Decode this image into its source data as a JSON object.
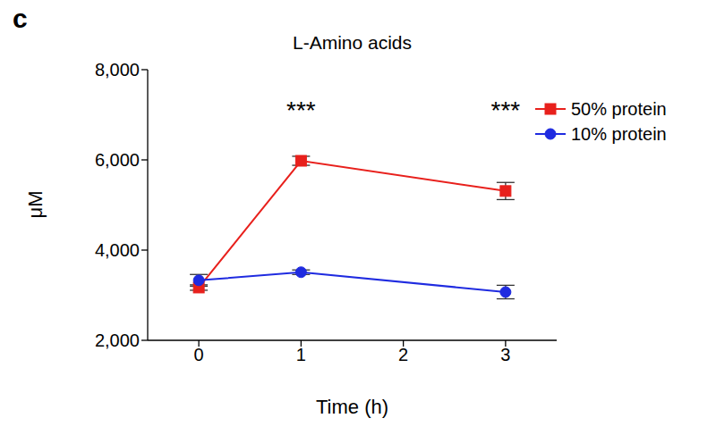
{
  "chart_data": {
    "type": "line",
    "panel_label": "c",
    "title": "L-Amino acids",
    "x_label": "Time (h)",
    "y_label": "μM",
    "x": [
      0,
      1,
      3
    ],
    "xlim": [
      -0.5,
      3.5
    ],
    "xticks": [
      0,
      1,
      2,
      3
    ],
    "ylim": [
      2000,
      8000
    ],
    "yticks": [
      {
        "value": 2000,
        "label": "2,000"
      },
      {
        "value": 4000,
        "label": "4,000"
      },
      {
        "value": 6000,
        "label": "6,000"
      },
      {
        "value": 8000,
        "label": "8,000"
      }
    ],
    "legend": "upper right",
    "series": [
      {
        "name": "50% protein",
        "color": "#e8201c",
        "marker": "square",
        "values": [
          3170,
          5980,
          5310
        ],
        "errors": [
          60,
          100,
          190
        ]
      },
      {
        "name": "10% protein",
        "color": "#1f2be0",
        "marker": "circle",
        "values": [
          3330,
          3510,
          3070
        ],
        "errors": [
          130,
          50,
          150
        ]
      }
    ],
    "annotations": [
      {
        "text": "***",
        "x": 1,
        "y": 7100
      },
      {
        "text": "***",
        "x": 3,
        "y": 7100
      }
    ]
  }
}
